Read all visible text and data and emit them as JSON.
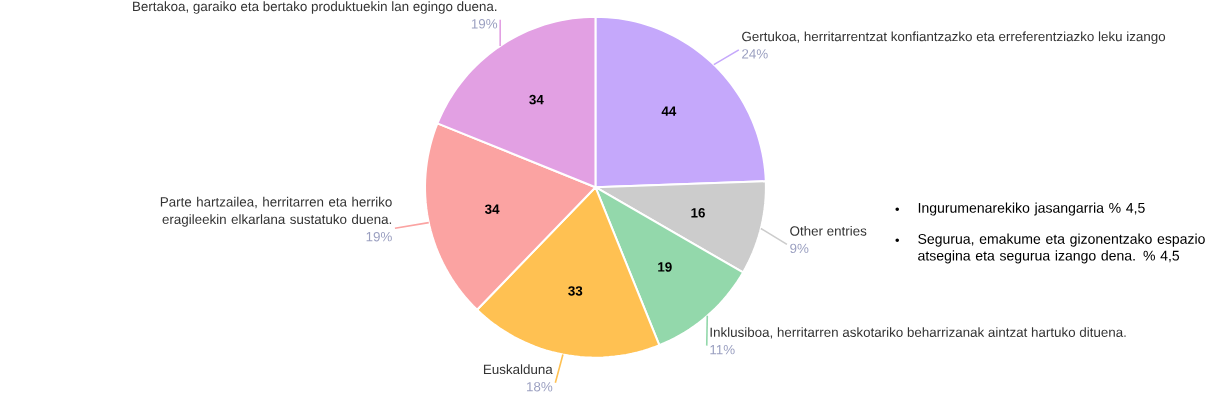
{
  "chart_data": {
    "type": "pie",
    "categories": [
      "Gertukoa, herritarrentzat konfiantzazko eta erreferentziazko leku izango",
      "Other entries",
      "Inklusiboa, herritarren askotariko beharrizanak aintzat hartuko dituena.",
      "Euskalduna",
      "Parte hartzailea, herritarren eta herriko eragileekin elkarlana sustatuko duena.",
      "Bertakoa, garaiko eta bertako produktuekin lan egingo duena."
    ],
    "values": [
      44,
      16,
      19,
      33,
      34,
      34
    ],
    "colors": [
      "#c5a8fb",
      "#cccccc",
      "#93d8ab",
      "#ffc152",
      "#fba3a2",
      "#e2a0e3"
    ],
    "data_labels": true,
    "annotations": [
      {
        "text": "24%",
        "x": "Gertukoa, herritarrentzat konfiantzazko eta erreferentziazko leku izango"
      },
      {
        "text": "9%",
        "x": "Other entries"
      },
      {
        "text": "11%",
        "x": "Inklusiboa, herritarren askotariko beharrizanak aintzat hartuko dituena."
      },
      {
        "text": "18%",
        "x": "Euskalduna"
      },
      {
        "text": "19%",
        "x": "Parte hartzailea, herritarren eta herriko eragileekin elkarlana sustatuko duena."
      },
      {
        "text": "19%",
        "x": "Bertakoa, garaiko eta bertako produktuekin lan egingo duena."
      },
      "Ingurumenarekiko jasangarria % 4,5",
      "Segurua, emakume eta gizonentzako espazio atsegina eta segurua izango dena. % 4,5"
    ]
  }
}
